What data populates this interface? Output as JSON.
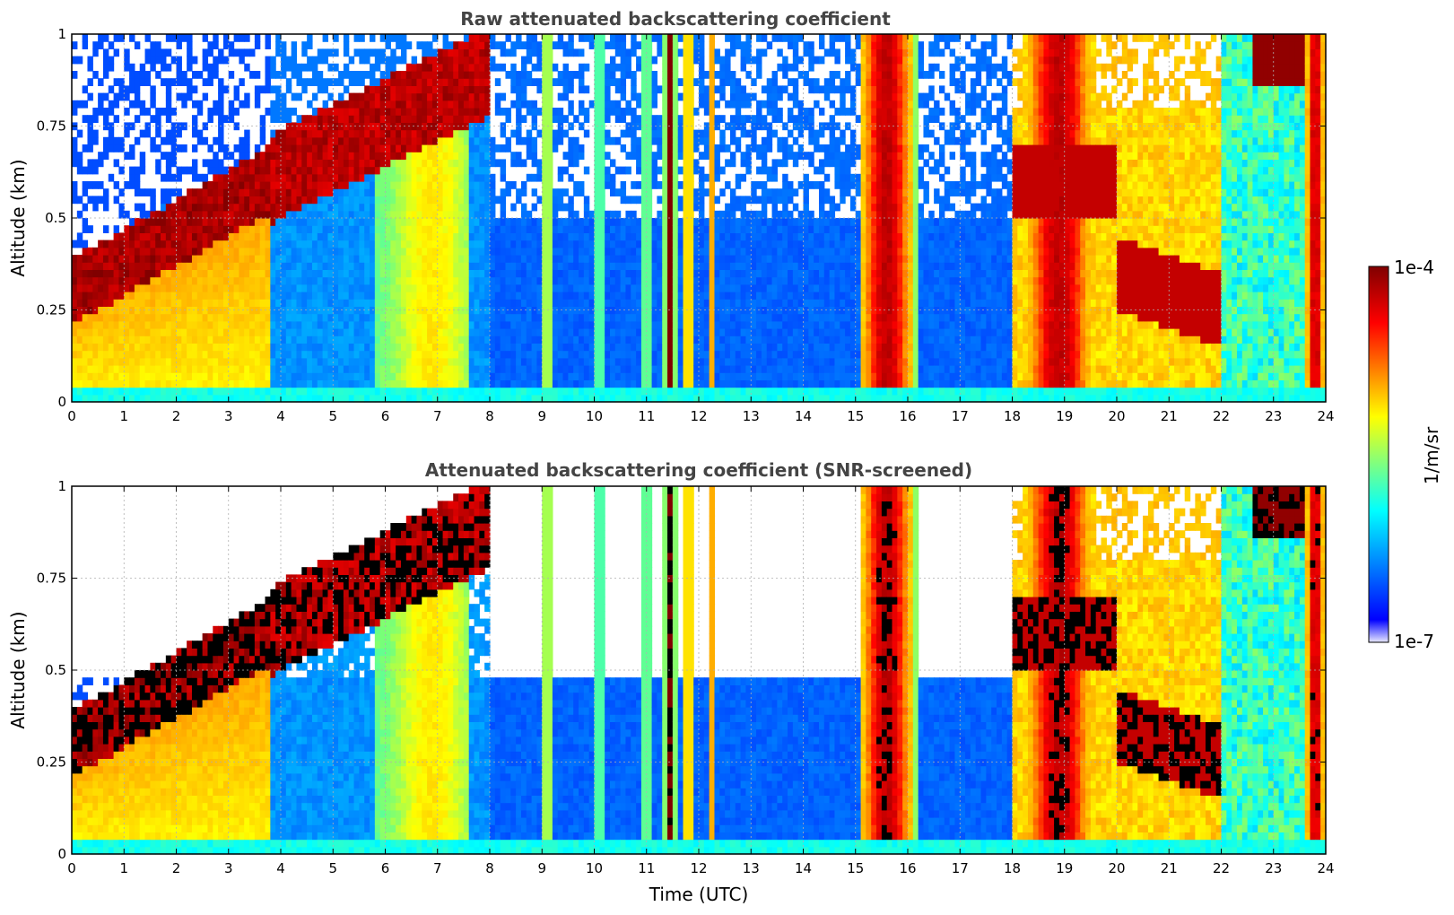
{
  "chart_data": [
    {
      "type": "heatmap",
      "title": "Raw attenuated backscattering coefficient",
      "xlabel": "",
      "ylabel": "Altitude (km)",
      "xlim": [
        0,
        24
      ],
      "ylim": [
        0,
        1
      ],
      "xticks": [
        "0",
        "1",
        "2",
        "3",
        "4",
        "5",
        "6",
        "7",
        "8",
        "9",
        "10",
        "11",
        "12",
        "13",
        "14",
        "15",
        "16",
        "17",
        "18",
        "19",
        "20",
        "21",
        "22",
        "23",
        "24"
      ],
      "yticks": [
        "0",
        "0.25",
        "0.5",
        "0.75",
        "1"
      ],
      "grid": true,
      "screened": false
    },
    {
      "type": "heatmap",
      "title": "Attenuated backscattering coefficient (SNR-screened)",
      "xlabel": "Time (UTC)",
      "ylabel": "Altitude (km)",
      "xlim": [
        0,
        24
      ],
      "ylim": [
        0,
        1
      ],
      "xticks": [
        "0",
        "1",
        "2",
        "3",
        "4",
        "5",
        "6",
        "7",
        "8",
        "9",
        "10",
        "11",
        "12",
        "13",
        "14",
        "15",
        "16",
        "17",
        "18",
        "19",
        "20",
        "21",
        "22",
        "23",
        "24"
      ],
      "yticks": [
        "0",
        "0.25",
        "0.5",
        "0.75",
        "1"
      ],
      "grid": true,
      "screened": true
    }
  ],
  "colorbar": {
    "label": "1/m/sr",
    "max_label": "1e-4",
    "min_label": "1e-7",
    "colormap": "jet",
    "colors": [
      "#e8e8ff",
      "#0000ff",
      "#00ffff",
      "#ffff00",
      "#ff0000",
      "#800000"
    ]
  }
}
